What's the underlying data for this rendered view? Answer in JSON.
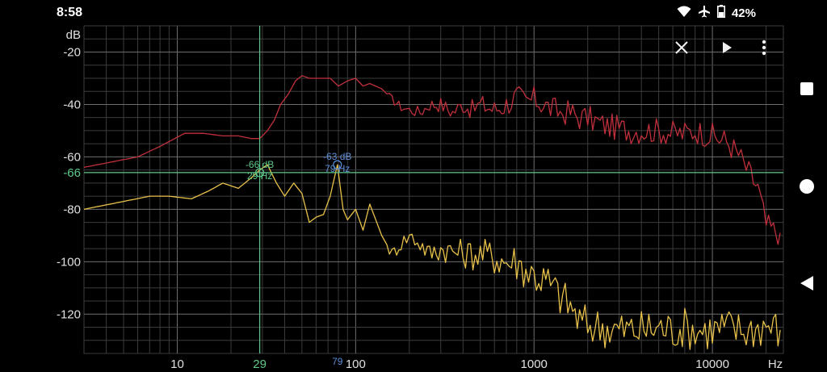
{
  "status_bar": {
    "time": "8:58",
    "battery": "42%",
    "icons": [
      "wifi-icon",
      "airplane-icon",
      "battery-icon"
    ]
  },
  "toolbar": {
    "icons": [
      "close-icon",
      "play-icon",
      "more-vert-icon"
    ]
  },
  "nav_bar": {
    "icons": [
      "recents-square-icon",
      "home-circle-icon",
      "back-triangle-icon"
    ]
  },
  "cursor": {
    "value_label": "-66",
    "readout_db": "-66 dB",
    "readout_hz": "29 Hz",
    "x_label": "29",
    "color": "#5fc98a"
  },
  "peak_marker": {
    "readout_db": "-63 dB",
    "readout_hz": "79 Hz",
    "x_label": "79",
    "color": "#5a8ed8"
  },
  "chart_data": {
    "type": "line",
    "title": "",
    "xlabel": "Hz",
    "ylabel": "dB",
    "x_scale": "log",
    "xlim": [
      3,
      25000
    ],
    "ylim": [
      -135,
      -10
    ],
    "x_ticks": [
      10,
      100,
      1000,
      10000
    ],
    "x_tick_labels": [
      "10",
      "100",
      "1000",
      "10000"
    ],
    "y_ticks": [
      -20,
      -40,
      -60,
      -80,
      -100,
      -120
    ],
    "y_tick_labels": [
      "-20",
      "-40",
      "-60",
      "-80",
      "-100",
      "-120"
    ],
    "grid": true,
    "series": [
      {
        "color": "#c0303c",
        "x": [
          3,
          6,
          8,
          11,
          14,
          18,
          22,
          26,
          29,
          32,
          35,
          38,
          42,
          46,
          50,
          55,
          60,
          66,
          72,
          80,
          90,
          100,
          110,
          120,
          140,
          160,
          180,
          200,
          230,
          260,
          300,
          350,
          400,
          450,
          500,
          600,
          700,
          800,
          900,
          1000,
          1200,
          1400,
          1600,
          1800,
          2000,
          2500,
          3000,
          3500,
          4000,
          5000,
          6000,
          7000,
          8000,
          10000,
          12000,
          14000,
          16000,
          18000,
          20000,
          22000,
          24000
        ],
        "y": [
          -64,
          -60,
          -56,
          -51,
          -51,
          -52,
          -52,
          -53,
          -53,
          -50,
          -46,
          -40,
          -36,
          -31,
          -29,
          -30,
          -30,
          -30,
          -30,
          -33,
          -31,
          -30,
          -33,
          -32,
          -34,
          -38,
          -41,
          -42,
          -43,
          -40,
          -40,
          -43,
          -40,
          -42,
          -40,
          -42,
          -40,
          -37,
          -39,
          -38,
          -41,
          -43,
          -43,
          -45,
          -45,
          -48,
          -49,
          -50,
          -50,
          -50,
          -51,
          -51,
          -50,
          -52,
          -54,
          -59,
          -66,
          -72,
          -86,
          -88,
          -89
        ]
      },
      {
        "color": "#e8c24a",
        "x": [
          3,
          5,
          7,
          9,
          12,
          15,
          18,
          22,
          26,
          29,
          32,
          36,
          40,
          45,
          50,
          55,
          60,
          66,
          72,
          79,
          85,
          90,
          100,
          110,
          120,
          140,
          160,
          180,
          200,
          230,
          260,
          300,
          350,
          400,
          500,
          600,
          700,
          800,
          900,
          1000,
          1200,
          1400,
          1600,
          1800,
          2000,
          2500,
          3000,
          4000,
          5000,
          6000,
          7000,
          8000,
          10000,
          12000,
          14000,
          16000,
          18000,
          20000,
          22000,
          24000
        ],
        "y": [
          -80,
          -77,
          -75,
          -75,
          -76,
          -73,
          -70,
          -72,
          -68,
          -65,
          -63,
          -70,
          -75,
          -70,
          -74,
          -85,
          -83,
          -82,
          -75,
          -63,
          -80,
          -84,
          -80,
          -88,
          -78,
          -90,
          -97,
          -93,
          -90,
          -93,
          -97,
          -95,
          -96,
          -97,
          -97,
          -98,
          -100,
          -100,
          -103,
          -105,
          -108,
          -113,
          -117,
          -123,
          -124,
          -125,
          -126,
          -126,
          -125,
          -126,
          -125,
          -126,
          -126,
          -125,
          -126,
          -126,
          -125,
          -124,
          -125,
          -126
        ]
      }
    ]
  }
}
